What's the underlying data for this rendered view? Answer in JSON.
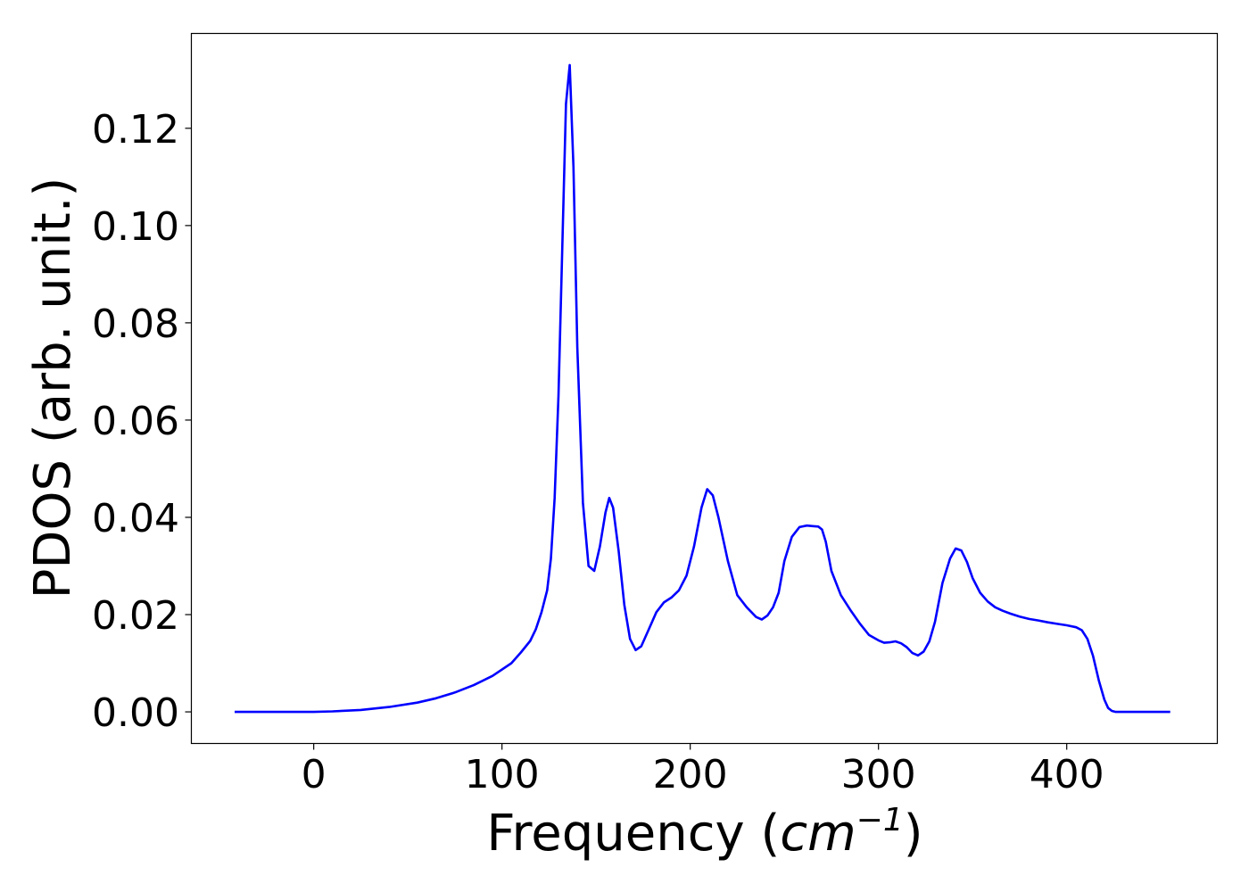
{
  "chart_data": {
    "type": "line",
    "title": "",
    "xlabel": "Frequency (",
    "xlabel_math_base": "cm",
    "xlabel_math_exp": "−1",
    "xlabel_close": ")",
    "ylabel": "PDOS (arb. unit.)",
    "xlim": [
      -65,
      480
    ],
    "ylim": [
      -0.0065,
      0.1395
    ],
    "xticks": [
      0,
      100,
      200,
      300,
      400
    ],
    "xtick_labels": [
      "0",
      "100",
      "200",
      "300",
      "400"
    ],
    "yticks": [
      0.0,
      0.02,
      0.04,
      0.06,
      0.08,
      0.1,
      0.12
    ],
    "ytick_labels": [
      "0.00",
      "0.02",
      "0.04",
      "0.06",
      "0.08",
      "0.10",
      "0.12"
    ],
    "grid": false,
    "legend": "none",
    "series": [
      {
        "color": "#0000ff",
        "x": [
          -42,
          -20,
          0,
          10,
          25,
          40,
          55,
          65,
          75,
          85,
          95,
          105,
          110,
          115,
          118,
          121,
          124,
          126,
          128,
          130,
          132,
          134,
          136,
          138,
          140,
          143,
          146,
          149,
          152,
          155,
          157,
          159,
          162,
          165,
          168,
          171,
          174,
          178,
          182,
          186,
          190,
          194,
          198,
          202,
          206,
          209,
          212,
          215,
          220,
          225,
          230,
          235,
          238,
          241,
          244,
          247,
          250,
          254,
          258,
          262,
          265,
          268,
          270,
          272,
          275,
          280,
          285,
          290,
          295,
          300,
          303,
          306,
          309,
          312,
          315,
          318,
          321,
          324,
          327,
          330,
          334,
          338,
          341,
          344,
          347,
          350,
          354,
          358,
          362,
          366,
          370,
          375,
          380,
          385,
          390,
          395,
          400,
          405,
          408,
          411,
          414,
          417,
          420,
          422,
          424,
          426,
          430,
          440,
          455
        ],
        "y": [
          0.0,
          0.0,
          0.0,
          0.0001,
          0.0004,
          0.001,
          0.0019,
          0.0028,
          0.004,
          0.0055,
          0.0074,
          0.01,
          0.0122,
          0.0146,
          0.017,
          0.0205,
          0.025,
          0.0315,
          0.044,
          0.065,
          0.095,
          0.125,
          0.133,
          0.112,
          0.075,
          0.043,
          0.03,
          0.029,
          0.034,
          0.041,
          0.044,
          0.042,
          0.033,
          0.022,
          0.015,
          0.0127,
          0.0135,
          0.017,
          0.0205,
          0.0225,
          0.0235,
          0.025,
          0.028,
          0.034,
          0.042,
          0.0458,
          0.0445,
          0.04,
          0.031,
          0.024,
          0.0215,
          0.0195,
          0.019,
          0.0198,
          0.0215,
          0.0245,
          0.031,
          0.036,
          0.038,
          0.0383,
          0.0382,
          0.0381,
          0.0375,
          0.035,
          0.029,
          0.024,
          0.021,
          0.0182,
          0.0158,
          0.0147,
          0.0142,
          0.0143,
          0.0145,
          0.0141,
          0.0133,
          0.0121,
          0.0116,
          0.0124,
          0.0145,
          0.0185,
          0.0265,
          0.0315,
          0.0336,
          0.0332,
          0.0308,
          0.0275,
          0.0245,
          0.0227,
          0.0215,
          0.0208,
          0.0202,
          0.0196,
          0.0191,
          0.0188,
          0.0184,
          0.0181,
          0.0178,
          0.0174,
          0.0168,
          0.015,
          0.0115,
          0.0065,
          0.0025,
          0.0008,
          0.0002,
          0.0,
          0.0,
          0.0,
          0.0
        ]
      }
    ]
  }
}
